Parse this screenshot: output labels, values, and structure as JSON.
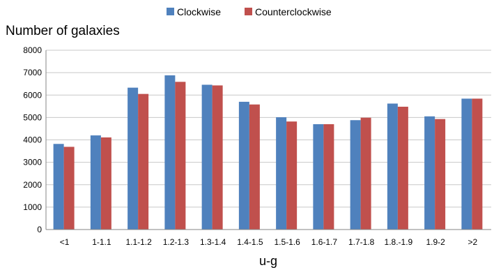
{
  "chart_data": {
    "type": "bar",
    "title": "",
    "ylabel": "Number of galaxies",
    "xlabel": "u-g",
    "ylim": [
      0,
      8000
    ],
    "yticks": [
      "0",
      "1000",
      "2000",
      "3000",
      "4000",
      "5000",
      "6000",
      "7000",
      "8000"
    ],
    "grid": "horizontal",
    "legend_position": "top",
    "categories": [
      "<1",
      "1-1.1",
      "1.1-1.2",
      "1.2-1.3",
      "1.3-1.4",
      "1.4-1.5",
      "1.5-1.6",
      "1.6-1.7",
      "1.7-1.8",
      "1.8.-1.9",
      "1.9-2",
      ">2"
    ],
    "series": [
      {
        "name": "Clockwise",
        "color": "#4f81bd",
        "values": [
          3820,
          4200,
          6330,
          6880,
          6460,
          5700,
          5010,
          4700,
          4880,
          5620,
          5050,
          5840
        ]
      },
      {
        "name": "Counterclockwise",
        "color": "#c0504d",
        "values": [
          3690,
          4110,
          6050,
          6590,
          6430,
          5580,
          4820,
          4700,
          4990,
          5480,
          4930,
          5840
        ]
      }
    ]
  }
}
